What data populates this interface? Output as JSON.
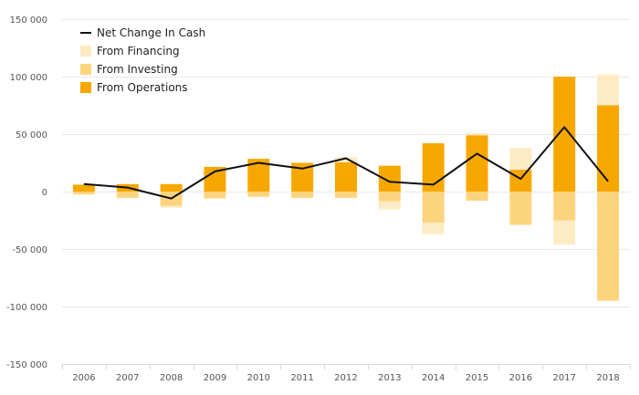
{
  "chart_data": {
    "type": "bar",
    "stacked": true,
    "categories": [
      "2006",
      "2007",
      "2008",
      "2009",
      "2010",
      "2011",
      "2012",
      "2013",
      "2014",
      "2015",
      "2016",
      "2017",
      "2018"
    ],
    "series": [
      {
        "name": "From Operations",
        "kind": "bar",
        "color": "#f7a800",
        "values": [
          6000,
          6500,
          6500,
          21500,
          28500,
          25000,
          25500,
          22500,
          42000,
          49000,
          19000,
          100000,
          75000
        ]
      },
      {
        "name": "From Investing",
        "kind": "bar",
        "color": "#fdd47e",
        "values": [
          -2500,
          -5500,
          -12500,
          -6000,
          -4500,
          -5500,
          -5500,
          -8500,
          -27000,
          -8000,
          -29000,
          -25000,
          -95000
        ]
      },
      {
        "name": "From Financing",
        "kind": "bar",
        "color": "#fdebc4",
        "values": [
          0,
          0,
          -1500,
          0,
          0,
          0,
          4500,
          -7000,
          -10000,
          2000,
          19000,
          -21000,
          27000
        ]
      },
      {
        "name": "Net Change In Cash",
        "kind": "line",
        "color": "#111111",
        "values": [
          6500,
          3500,
          -6000,
          17500,
          25000,
          20000,
          29000,
          8500,
          6000,
          33000,
          11000,
          56000,
          9000
        ]
      }
    ],
    "legend_order": [
      "Net Change In Cash",
      "From Financing",
      "From Investing",
      "From Operations"
    ],
    "legend_position": "top-left",
    "y_ticks": [
      -150000,
      -100000,
      -50000,
      0,
      50000,
      100000,
      150000
    ],
    "y_tick_labels": [
      "-150 000",
      "-100 000",
      "-50 000",
      "0",
      "50 000",
      "100 000",
      "150 000"
    ],
    "ylim": [
      -150000,
      150000
    ],
    "grid": true,
    "title": "",
    "xlabel": "",
    "ylabel": ""
  }
}
